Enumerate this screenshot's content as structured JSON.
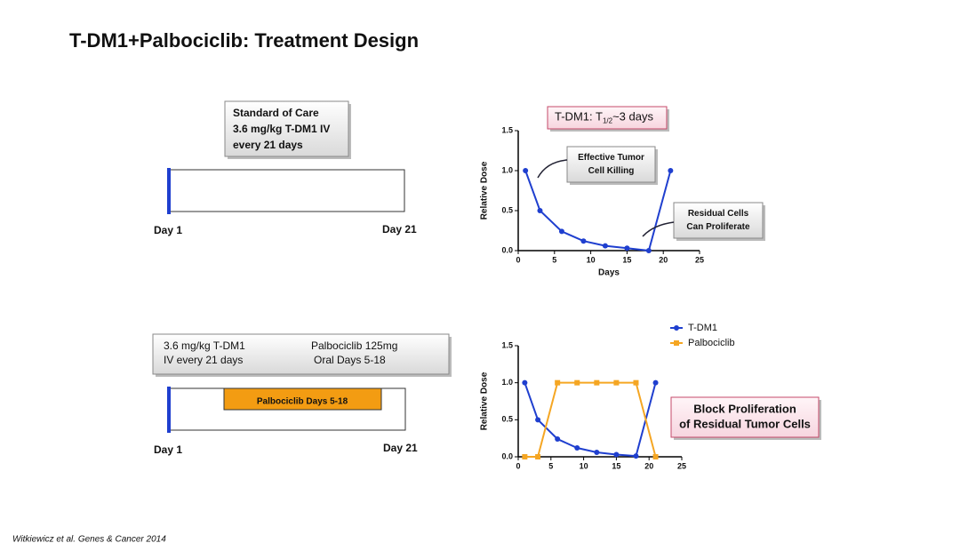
{
  "title": "T-DM1+Palbociclib: Treatment Design",
  "diagram_top": {
    "box_lines": [
      "Standard of Care",
      "3.6 mg/kg T-DM1  IV",
      "every 21 days"
    ],
    "start_label": "Day 1",
    "end_label": "Day 21"
  },
  "diagram_bottom": {
    "box_left_lines": [
      "3.6 mg/kg T-DM1",
      "IV every 21 days"
    ],
    "box_right_lines": [
      "Palbociclib 125mg",
      "Oral Days 5-18"
    ],
    "bar_label": "Palbociclib  Days 5-18",
    "start_label": "Day 1",
    "end_label": "Day 21"
  },
  "citation": "Witkiewicz et al. Genes & Cancer 2014",
  "chart_data": [
    {
      "type": "line",
      "header": {
        "text": "T-DM1: T",
        "subscript": "1/2",
        "suffix": "~3 days"
      },
      "x_label": "Days",
      "y_label": "Relative Dose",
      "x": [
        1,
        3,
        6,
        9,
        12,
        15,
        18,
        21
      ],
      "series": [
        {
          "name": "T-DM1",
          "color": "#1f3fcf",
          "marker": "circle",
          "values": [
            1,
            0.5,
            0.24,
            0.12,
            0.06,
            0.03,
            0.0,
            1
          ]
        }
      ],
      "xlim": [
        0,
        25
      ],
      "xticks": [
        0,
        5,
        10,
        15,
        20,
        25
      ],
      "ylim": [
        0,
        1.5
      ],
      "yticks": [
        {
          "value": 0,
          "label": "0.0"
        },
        0.5,
        {
          "value": 1,
          "label": "1.0"
        },
        1.5
      ],
      "legend": false,
      "annotations": [
        {
          "lines": [
            "Effective Tumor",
            "Cell Killing"
          ]
        },
        {
          "lines": [
            "Residual Cells",
            "Can Proliferate"
          ]
        }
      ]
    },
    {
      "type": "line",
      "y_label": "Relative Dose",
      "x": [
        1,
        3,
        6,
        9,
        12,
        15,
        18,
        21
      ],
      "series": [
        {
          "name": "T-DM1",
          "color": "#1f3fcf",
          "marker": "circle",
          "values": [
            1,
            0.5,
            0.24,
            0.12,
            0.06,
            0.03,
            0.01,
            1
          ]
        },
        {
          "name": "Palbociclib",
          "color": "#f5a623",
          "marker": "square",
          "values": [
            0,
            0,
            1,
            1,
            1,
            1,
            1,
            0
          ]
        }
      ],
      "xlim": [
        0,
        25
      ],
      "xticks": [
        0,
        5,
        10,
        15,
        20,
        25
      ],
      "ylim": [
        0,
        1.5
      ],
      "yticks": [
        {
          "value": 0,
          "label": "0.0"
        },
        0.5,
        {
          "value": 1,
          "label": "1.0"
        },
        1.5
      ],
      "legend": true,
      "annotations": [
        {
          "lines": [
            "Block Proliferation",
            "of Residual Tumor Cells"
          ]
        }
      ]
    }
  ]
}
